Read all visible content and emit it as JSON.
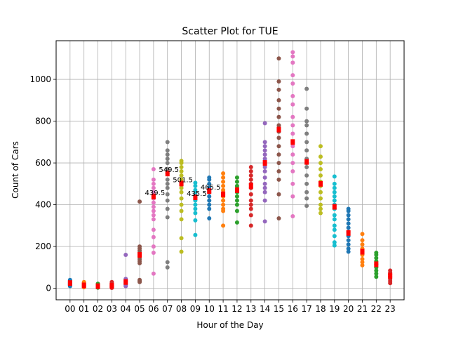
{
  "chart_data": {
    "type": "scatter",
    "title": "Scatter Plot for TUE",
    "xlabel": "Hour of the Day",
    "ylabel": "Count of Cars",
    "categories": [
      "00",
      "01",
      "02",
      "03",
      "04",
      "05",
      "06",
      "07",
      "08",
      "09",
      "10",
      "11",
      "12",
      "13",
      "14",
      "15",
      "16",
      "17",
      "18",
      "19",
      "20",
      "21",
      "22",
      "23"
    ],
    "ylim": [
      -55,
      1185
    ],
    "yticks": [
      0,
      200,
      400,
      600,
      800,
      1000
    ],
    "grid": true,
    "median_marker_color": "#ff0000",
    "colors": [
      "#1f77b4",
      "#ff7f0e",
      "#2ca02c",
      "#d62728",
      "#9467bd",
      "#8c564b",
      "#e377c2",
      "#7f7f7f",
      "#bcbd22",
      "#17becf"
    ],
    "series": [
      {
        "hour": "00",
        "median": 25,
        "values": [
          10,
          15,
          18,
          20,
          22,
          25,
          28,
          30,
          33,
          36,
          40
        ]
      },
      {
        "hour": "01",
        "median": 14,
        "values": [
          5,
          8,
          10,
          12,
          14,
          16,
          18,
          22,
          25,
          30
        ]
      },
      {
        "hour": "02",
        "median": 10,
        "values": [
          3,
          5,
          7,
          9,
          10,
          12,
          14,
          18,
          22
        ]
      },
      {
        "hour": "03",
        "median": 12,
        "values": [
          2,
          5,
          8,
          10,
          12,
          15,
          18,
          25,
          30
        ]
      },
      {
        "hour": "04",
        "median": 30,
        "values": [
          10,
          15,
          20,
          25,
          30,
          35,
          40,
          45,
          160
        ]
      },
      {
        "hour": "05",
        "median": 160,
        "values": [
          30,
          35,
          40,
          120,
          130,
          140,
          150,
          160,
          170,
          180,
          190,
          200,
          415
        ]
      },
      {
        "hour": "06",
        "median": 439.5,
        "values": [
          70,
          170,
          200,
          245,
          280,
          330,
          350,
          370,
          390,
          410,
          430,
          440,
          460,
          480,
          500,
          520,
          570
        ]
      },
      {
        "hour": "07",
        "median": 549.5,
        "values": [
          100,
          125,
          340,
          380,
          420,
          450,
          480,
          500,
          520,
          550,
          570,
          600,
          620,
          640,
          660,
          700
        ]
      },
      {
        "hour": "08",
        "median": 501.5,
        "values": [
          175,
          240,
          330,
          370,
          400,
          430,
          460,
          480,
          500,
          520,
          540,
          560,
          580,
          600,
          610
        ]
      },
      {
        "hour": "09",
        "median": 435.5,
        "values": [
          255,
          325,
          360,
          380,
          400,
          420,
          435,
          450,
          470,
          490,
          505
        ]
      },
      {
        "hour": "10",
        "median": 465.5,
        "values": [
          335,
          380,
          400,
          420,
          440,
          460,
          470,
          480,
          500,
          520,
          530
        ]
      },
      {
        "hour": "11",
        "median": 450,
        "values": [
          300,
          370,
          380,
          400,
          420,
          440,
          450,
          470,
          490,
          510,
          530,
          550
        ]
      },
      {
        "hour": "12",
        "median": 470,
        "values": [
          315,
          370,
          400,
          420,
          440,
          460,
          470,
          490,
          510,
          530
        ]
      },
      {
        "hour": "13",
        "median": 490,
        "values": [
          300,
          350,
          380,
          400,
          420,
          450,
          480,
          500,
          520,
          540,
          560,
          580
        ]
      },
      {
        "hour": "14",
        "median": 600,
        "values": [
          320,
          420,
          460,
          480,
          500,
          530,
          560,
          580,
          600,
          620,
          640,
          660,
          680,
          700,
          790
        ]
      },
      {
        "hour": "15",
        "median": 760,
        "values": [
          335,
          450,
          520,
          560,
          600,
          640,
          680,
          720,
          750,
          780,
          820,
          860,
          900,
          950,
          990,
          1100
        ]
      },
      {
        "hour": "16",
        "median": 700,
        "values": [
          345,
          440,
          500,
          560,
          600,
          640,
          680,
          700,
          740,
          780,
          820,
          880,
          920,
          980,
          1020,
          1080,
          1110,
          1130
        ]
      },
      {
        "hour": "17",
        "median": 605,
        "values": [
          395,
          430,
          460,
          500,
          540,
          580,
          600,
          620,
          660,
          700,
          740,
          780,
          800,
          860,
          955
        ]
      },
      {
        "hour": "18",
        "median": 500,
        "values": [
          360,
          380,
          400,
          430,
          460,
          490,
          510,
          540,
          570,
          600,
          630,
          680
        ]
      },
      {
        "hour": "19",
        "median": 390,
        "values": [
          205,
          220,
          250,
          280,
          300,
          330,
          350,
          380,
          400,
          420,
          440,
          460,
          480,
          500,
          535
        ]
      },
      {
        "hour": "20",
        "median": 265,
        "values": [
          175,
          190,
          210,
          230,
          250,
          270,
          290,
          310,
          330,
          350,
          370,
          380
        ]
      },
      {
        "hour": "21",
        "median": 175,
        "values": [
          110,
          125,
          140,
          160,
          175,
          190,
          210,
          230,
          260
        ]
      },
      {
        "hour": "22",
        "median": 115,
        "values": [
          55,
          70,
          85,
          100,
          115,
          130,
          145,
          160,
          170
        ]
      },
      {
        "hour": "23",
        "median": 60,
        "values": [
          25,
          35,
          45,
          55,
          65,
          75,
          85
        ]
      }
    ],
    "annotations": [
      {
        "hour": "06",
        "value": 439.5,
        "text": "439.5"
      },
      {
        "hour": "07",
        "value": 549.5,
        "text": "549.5"
      },
      {
        "hour": "08",
        "value": 501.5,
        "text": "501.5"
      },
      {
        "hour": "09",
        "value": 435.5,
        "text": "435.5"
      },
      {
        "hour": "10",
        "value": 465.5,
        "text": "465.5"
      }
    ]
  }
}
